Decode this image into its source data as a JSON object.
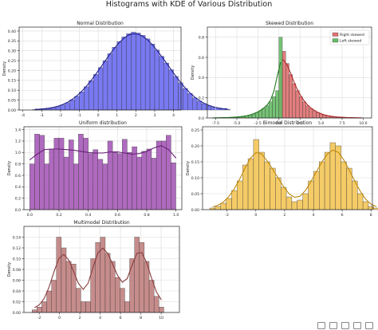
{
  "figure": {
    "title": "Histograms with KDE of Various Distribution"
  },
  "chart_data": [
    {
      "type": "bar",
      "title": "Normal Distribution",
      "xlabel": "",
      "ylabel": "Density",
      "xlim": [
        -4.2,
        4.4
      ],
      "ylim": [
        0,
        0.42
      ],
      "xticks": [
        -4,
        -3,
        -2,
        -1,
        0,
        1,
        2,
        3,
        4
      ],
      "xtick_labels": [
        "-4",
        "-3",
        "-2",
        "-1",
        "0",
        "1",
        "2",
        "3",
        "4"
      ],
      "yticks": [
        0,
        0.05,
        0.1,
        0.15,
        0.2,
        0.25,
        0.3,
        0.35,
        0.4
      ],
      "ytick_labels": [
        "0.00",
        "0.05",
        "0.10",
        "0.15",
        "0.20",
        "0.25",
        "0.30",
        "0.35",
        "0.40"
      ],
      "bin_start": -3.5,
      "bin_width": 0.25,
      "series": [
        {
          "values": [
            0.002,
            0.004,
            0.006,
            0.008,
            0.012,
            0.018,
            0.026,
            0.037,
            0.052,
            0.07,
            0.092,
            0.118,
            0.148,
            0.18,
            0.215,
            0.25,
            0.285,
            0.318,
            0.346,
            0.37,
            0.387,
            0.394,
            0.39,
            0.378,
            0.36,
            0.334,
            0.304,
            0.272,
            0.238,
            0.204,
            0.17,
            0.138,
            0.109,
            0.084,
            0.062,
            0.045,
            0.032,
            0.022,
            0.014,
            0.009,
            0.006,
            0.004
          ],
          "color": "#6a6af0",
          "kde_color": "#1f1f8f"
        }
      ]
    },
    {
      "type": "bar",
      "title": "Skewed Distribution",
      "xlabel": "",
      "ylabel": "Density",
      "xlim": [
        -8.5,
        11
      ],
      "ylim": [
        0,
        0.9
      ],
      "xticks": [
        -7.5,
        -5,
        -2.5,
        0,
        2.5,
        5,
        7.5,
        10
      ],
      "xtick_labels": [
        "-7.5",
        "-5.0",
        "-2.5",
        "0.0",
        "2.5",
        "5.0",
        "7.5",
        "10.0"
      ],
      "yticks": [
        0,
        0.2,
        0.4,
        0.6,
        0.8
      ],
      "ytick_labels": [
        "0.0",
        "0.2",
        "0.4",
        "0.6",
        "0.8"
      ],
      "legend": "top-right",
      "bin_width": 0.4,
      "series": [
        {
          "name": "Right skewed",
          "color": "#e07070",
          "kde_color": "#b02525",
          "bin_start": 0,
          "values": [
            0.55,
            0.66,
            0.54,
            0.43,
            0.34,
            0.27,
            0.21,
            0.16,
            0.12,
            0.095,
            0.072,
            0.054,
            0.04,
            0.03,
            0.022,
            0.016,
            0.012,
            0.009,
            0.007,
            0.005,
            0.004,
            0.003,
            0.002,
            0.002,
            0.001
          ]
        },
        {
          "name": "Left skewed",
          "color": "#66bb66",
          "kde_color": "#1e7a1e",
          "bin_start": -8,
          "values": [
            0.001,
            0.002,
            0.002,
            0.003,
            0.004,
            0.005,
            0.007,
            0.009,
            0.012,
            0.016,
            0.022,
            0.03,
            0.04,
            0.054,
            0.072,
            0.095,
            0.12,
            0.16,
            0.21,
            0.27,
            0.8
          ]
        }
      ]
    },
    {
      "type": "bar",
      "title": "Uniform distribution",
      "xlabel": "",
      "ylabel": "Density",
      "xlim": [
        -0.04,
        1.04
      ],
      "ylim": [
        0,
        1.45
      ],
      "xticks": [
        0,
        0.2,
        0.4,
        0.6,
        0.8,
        1
      ],
      "xtick_labels": [
        "0.0",
        "0.2",
        "0.4",
        "0.6",
        "0.8",
        "1.0"
      ],
      "yticks": [
        0,
        0.2,
        0.4,
        0.6,
        0.8,
        1,
        1.2,
        1.4
      ],
      "ytick_labels": [
        "0.0",
        "0.2",
        "0.4",
        "0.6",
        "0.8",
        "1.0",
        "1.2",
        "1.4"
      ],
      "bin_start": 0,
      "bin_width": 0.0333,
      "series": [
        {
          "values": [
            0.8,
            1.32,
            1.3,
            0.8,
            1.06,
            1.25,
            1.25,
            0.92,
            1.22,
            0.8,
            1.32,
            1.25,
            0.98,
            1.05,
            0.88,
            0.8,
            1.2,
            1.0,
            0.98,
            1.23,
            1.0,
            1.1,
            0.92,
            1.02,
            1.06,
            0.9,
            1.2,
            1.2,
            1.3,
            0.82
          ],
          "color": "#a65ab8",
          "kde_color": "#6a1f7a",
          "kde": [
            [
              0,
              0.87
            ],
            [
              0.05,
              0.97
            ],
            [
              0.1,
              1.05
            ],
            [
              0.15,
              1.06
            ],
            [
              0.2,
              1.06
            ],
            [
              0.25,
              1.05
            ],
            [
              0.3,
              1.04
            ],
            [
              0.35,
              1.02
            ],
            [
              0.4,
              1.0
            ],
            [
              0.45,
              0.99
            ],
            [
              0.5,
              0.99
            ],
            [
              0.55,
              1.01
            ],
            [
              0.6,
              1.01
            ],
            [
              0.65,
              0.99
            ],
            [
              0.7,
              0.97
            ],
            [
              0.75,
              0.98
            ],
            [
              0.8,
              1.02
            ],
            [
              0.85,
              1.08
            ],
            [
              0.9,
              1.12
            ],
            [
              0.95,
              1.05
            ],
            [
              1.0,
              0.9
            ]
          ]
        }
      ]
    },
    {
      "type": "bar",
      "title": "Bimodel Distribution",
      "xlabel": "",
      "ylabel": "Density",
      "xlim": [
        -3.7,
        8.1
      ],
      "ylim": [
        0,
        0.26
      ],
      "xticks": [
        -2,
        0,
        2,
        4,
        6,
        8
      ],
      "xtick_labels": [
        "-2",
        "0",
        "2",
        "4",
        "6",
        "8"
      ],
      "yticks": [
        0,
        0.05,
        0.1,
        0.15,
        0.2,
        0.25
      ],
      "ytick_labels": [
        "0.00",
        "0.05",
        "0.10",
        "0.15",
        "0.20",
        "0.25"
      ],
      "bin_start": -3.2,
      "bin_width": 0.38,
      "series": [
        {
          "values": [
            0.005,
            0.01,
            0.02,
            0.035,
            0.06,
            0.09,
            0.14,
            0.16,
            0.22,
            0.18,
            0.15,
            0.13,
            0.1,
            0.07,
            0.04,
            0.025,
            0.03,
            0.05,
            0.09,
            0.12,
            0.15,
            0.18,
            0.21,
            0.2,
            0.15,
            0.13,
            0.09,
            0.05,
            0.025,
            0.01,
            0.005
          ],
          "color": "#f3c556",
          "kde_color": "#c08a10"
        }
      ]
    },
    {
      "type": "bar",
      "title": "Multimodel Distribution",
      "xlabel": "",
      "ylabel": "Density",
      "xlim": [
        -3.5,
        11.8
      ],
      "ylim": [
        0,
        0.16
      ],
      "xticks": [
        -2,
        0,
        2,
        4,
        6,
        8,
        10
      ],
      "xtick_labels": [
        "-2",
        "0",
        "2",
        "4",
        "6",
        "8",
        "10"
      ],
      "yticks": [
        0,
        0.02,
        0.04,
        0.06,
        0.08,
        0.1,
        0.12,
        0.14
      ],
      "ytick_labels": [
        "0.00",
        "0.02",
        "0.04",
        "0.06",
        "0.08",
        "0.10",
        "0.12",
        "0.14"
      ],
      "bin_start": -2.7,
      "bin_width": 0.48,
      "series": [
        {
          "values": [
            0.005,
            0.01,
            0.02,
            0.04,
            0.06,
            0.14,
            0.12,
            0.095,
            0.09,
            0.045,
            0.02,
            0.02,
            0.1,
            0.13,
            0.14,
            0.11,
            0.095,
            0.065,
            0.045,
            0.02,
            0.1,
            0.14,
            0.13,
            0.095,
            0.06,
            0.03,
            0.01
          ],
          "color": "#c08080",
          "kde_color": "#8a3b3b"
        }
      ]
    }
  ]
}
